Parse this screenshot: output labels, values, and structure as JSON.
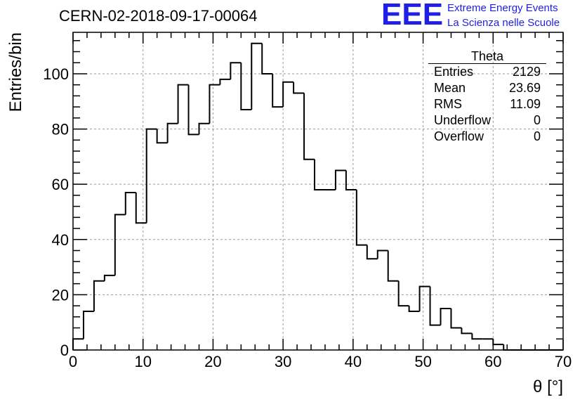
{
  "header": {
    "run_title": "CERN-02-2018-09-17-00064"
  },
  "logo": {
    "mark": "EEE",
    "line1": "Extreme Energy Events",
    "line2": "La Scienza nelle Scuole",
    "color": "#1f1fe6"
  },
  "stats_box": {
    "title": "Theta",
    "rows": [
      {
        "label": "Entries",
        "value": "2129"
      },
      {
        "label": "Mean",
        "value": "23.69"
      },
      {
        "label": "RMS",
        "value": "11.09"
      },
      {
        "label": "Underflow",
        "value": "0"
      },
      {
        "label": "Overflow",
        "value": "0"
      }
    ]
  },
  "chart_data": {
    "type": "histogram",
    "xlabel": "θ [°]",
    "ylabel": "Entries/bin",
    "xlim": [
      0,
      70
    ],
    "ylim": [
      0,
      115
    ],
    "xticks": [
      0,
      10,
      20,
      30,
      40,
      50,
      60,
      70
    ],
    "yticks": [
      0,
      20,
      40,
      60,
      80,
      100
    ],
    "grid": true,
    "bin_width": 1.5,
    "bin_edges_start": 0,
    "values": [
      4,
      14,
      25,
      27,
      49,
      57,
      46,
      80,
      75,
      82,
      96,
      78,
      82,
      96,
      98,
      104,
      87,
      111,
      100,
      88,
      97,
      93,
      69,
      58,
      58,
      65,
      58,
      38,
      33,
      36,
      25,
      16,
      14,
      23,
      9,
      15,
      8,
      6,
      4,
      4,
      2,
      0,
      0,
      0,
      0,
      0,
      0
    ]
  }
}
